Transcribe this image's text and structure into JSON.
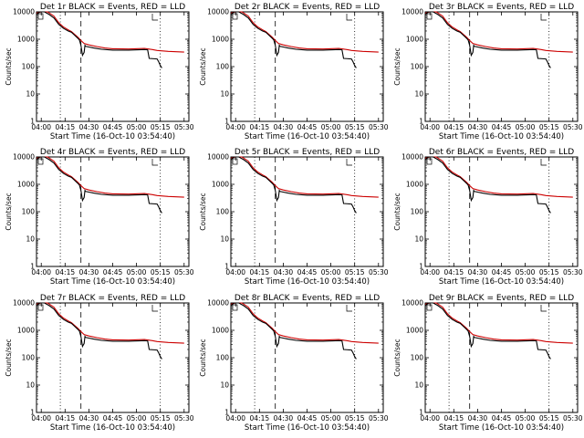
{
  "chart_data": [
    {
      "type": "line",
      "title": "Det 1r BLACK = Events, RED = LLD",
      "xlabel": "Start Time (16-Oct-10 03:54:40)",
      "ylabel": "Counts/sec",
      "yscale": "log",
      "ylim": [
        1,
        10000
      ],
      "xlim": [
        "03:57",
        "05:33"
      ],
      "x_ticks": [
        "04:00",
        "04:15",
        "04:30",
        "04:45",
        "05:00",
        "05:15",
        "05:30"
      ],
      "y_ticks": [
        "1",
        "10",
        "100",
        "1000",
        "10000"
      ],
      "vlines": [
        {
          "x": "04:12",
          "style": "dotted"
        },
        {
          "x": "04:25",
          "style": "dashed"
        },
        {
          "x": "05:15",
          "style": "dotted"
        }
      ],
      "series": []
    },
    {
      "type": "line",
      "title": "Det 2r BLACK = Events, RED = LLD",
      "xlabel": "Start Time (16-Oct-10 03:54:40)",
      "ylabel": "Counts/sec",
      "yscale": "log",
      "ylim": [
        1,
        10000
      ],
      "xlim": [
        "03:57",
        "05:33"
      ],
      "x_ticks": [
        "04:00",
        "04:15",
        "04:30",
        "04:45",
        "05:00",
        "05:15",
        "05:30"
      ],
      "y_ticks": [
        "1",
        "10",
        "100",
        "1000",
        "10000"
      ],
      "vlines": [
        {
          "x": "04:12",
          "style": "dotted"
        },
        {
          "x": "04:25",
          "style": "dashed"
        },
        {
          "x": "05:15",
          "style": "dotted"
        }
      ],
      "series": []
    },
    {
      "type": "line",
      "title": "Det 3r BLACK = Events, RED = LLD",
      "xlabel": "Start Time (16-Oct-10 03:54:40)",
      "ylabel": "Counts/sec",
      "yscale": "log",
      "ylim": [
        1,
        10000
      ],
      "xlim": [
        "03:57",
        "05:33"
      ],
      "x_ticks": [
        "04:00",
        "04:15",
        "04:30",
        "04:45",
        "05:00",
        "05:15",
        "05:30"
      ],
      "y_ticks": [
        "1",
        "10",
        "100",
        "1000",
        "10000"
      ],
      "vlines": [
        {
          "x": "04:12",
          "style": "dotted"
        },
        {
          "x": "04:25",
          "style": "dashed"
        },
        {
          "x": "05:15",
          "style": "dotted"
        }
      ],
      "series": []
    },
    {
      "type": "line",
      "title": "Det 4r BLACK = Events, RED = LLD",
      "xlabel": "Start Time (16-Oct-10 03:54:40)",
      "ylabel": "Counts/sec",
      "yscale": "log",
      "ylim": [
        1,
        10000
      ],
      "xlim": [
        "03:57",
        "05:33"
      ],
      "x_ticks": [
        "04:00",
        "04:15",
        "04:30",
        "04:45",
        "05:00",
        "05:15",
        "05:30"
      ],
      "y_ticks": [
        "1",
        "10",
        "100",
        "1000",
        "10000"
      ],
      "vlines": [
        {
          "x": "04:12",
          "style": "dotted"
        },
        {
          "x": "04:25",
          "style": "dashed"
        },
        {
          "x": "05:15",
          "style": "dotted"
        }
      ],
      "series": []
    },
    {
      "type": "line",
      "title": "Det 5r BLACK = Events, RED = LLD",
      "xlabel": "Start Time (16-Oct-10 03:54:40)",
      "ylabel": "Counts/sec",
      "yscale": "log",
      "ylim": [
        1,
        10000
      ],
      "xlim": [
        "03:57",
        "05:33"
      ],
      "x_ticks": [
        "04:00",
        "04:15",
        "04:30",
        "04:45",
        "05:00",
        "05:15",
        "05:30"
      ],
      "y_ticks": [
        "1",
        "10",
        "100",
        "1000",
        "10000"
      ],
      "vlines": [
        {
          "x": "04:12",
          "style": "dotted"
        },
        {
          "x": "04:25",
          "style": "dashed"
        },
        {
          "x": "05:15",
          "style": "dotted"
        }
      ],
      "series": []
    },
    {
      "type": "line",
      "title": "Det 6r BLACK = Events, RED = LLD",
      "xlabel": "Start Time (16-Oct-10 03:54:40)",
      "ylabel": "Counts/sec",
      "yscale": "log",
      "ylim": [
        1,
        10000
      ],
      "xlim": [
        "03:57",
        "05:33"
      ],
      "x_ticks": [
        "04:00",
        "04:15",
        "04:30",
        "04:45",
        "05:00",
        "05:15",
        "05:30"
      ],
      "y_ticks": [
        "1",
        "10",
        "100",
        "1000",
        "10000"
      ],
      "vlines": [
        {
          "x": "04:12",
          "style": "dotted"
        },
        {
          "x": "04:25",
          "style": "dashed"
        },
        {
          "x": "05:15",
          "style": "dotted"
        }
      ],
      "series": []
    },
    {
      "type": "line",
      "title": "Det 7r BLACK = Events, RED = LLD",
      "xlabel": "Start Time (16-Oct-10 03:54:40)",
      "ylabel": "Counts/sec",
      "yscale": "log",
      "ylim": [
        1,
        10000
      ],
      "xlim": [
        "03:57",
        "05:33"
      ],
      "x_ticks": [
        "04:00",
        "04:15",
        "04:30",
        "04:45",
        "05:00",
        "05:15",
        "05:30"
      ],
      "y_ticks": [
        "1",
        "10",
        "100",
        "1000",
        "10000"
      ],
      "vlines": [
        {
          "x": "04:12",
          "style": "dotted"
        },
        {
          "x": "04:25",
          "style": "dashed"
        },
        {
          "x": "05:15",
          "style": "dotted"
        }
      ],
      "series": []
    },
    {
      "type": "line",
      "title": "Det 8r BLACK = Events, RED = LLD",
      "xlabel": "Start Time (16-Oct-10 03:54:40)",
      "ylabel": "Counts/sec",
      "yscale": "log",
      "ylim": [
        1,
        10000
      ],
      "xlim": [
        "03:57",
        "05:33"
      ],
      "x_ticks": [
        "04:00",
        "04:15",
        "04:30",
        "04:45",
        "05:00",
        "05:15",
        "05:30"
      ],
      "y_ticks": [
        "1",
        "10",
        "100",
        "1000",
        "10000"
      ],
      "vlines": [
        {
          "x": "04:12",
          "style": "dotted"
        },
        {
          "x": "04:25",
          "style": "dashed"
        },
        {
          "x": "05:15",
          "style": "dotted"
        }
      ],
      "series": []
    },
    {
      "type": "line",
      "title": "Det 9r BLACK = Events, RED = LLD",
      "xlabel": "Start Time (16-Oct-10 03:54:40)",
      "ylabel": "Counts/sec",
      "yscale": "log",
      "ylim": [
        1,
        10000
      ],
      "xlim": [
        "03:57",
        "05:33"
      ],
      "x_ticks": [
        "04:00",
        "04:15",
        "04:30",
        "04:45",
        "05:00",
        "05:15",
        "05:30"
      ],
      "y_ticks": [
        "1",
        "10",
        "100",
        "1000",
        "10000"
      ],
      "vlines": [
        {
          "x": "04:12",
          "style": "dotted"
        },
        {
          "x": "04:25",
          "style": "dashed"
        },
        {
          "x": "05:15",
          "style": "dotted"
        }
      ],
      "series": []
    }
  ],
  "series_template": {
    "events": {
      "color": "#000000",
      "points": [
        [
          "03:57",
          8000
        ],
        [
          "03:59",
          10000
        ],
        [
          "04:02",
          10000
        ],
        [
          "04:05",
          8000
        ],
        [
          "04:08",
          6000
        ],
        [
          "04:11",
          3500
        ],
        [
          "04:14",
          2500
        ],
        [
          "04:17",
          2000
        ],
        [
          "04:19",
          1800
        ],
        [
          "04:21",
          1400
        ],
        [
          "04:23",
          1100
        ],
        [
          "04:24",
          950
        ],
        [
          "04:25",
          600
        ],
        [
          "04:26",
          260
        ],
        [
          "04:27",
          330
        ],
        [
          "04:27.5",
          600
        ],
        [
          "04:28",
          550
        ],
        [
          "04:30",
          520
        ],
        [
          "04:33",
          480
        ],
        [
          "04:38",
          430
        ],
        [
          "04:45",
          400
        ],
        [
          "04:55",
          400
        ],
        [
          "05:05",
          420
        ],
        [
          "05:07",
          410
        ],
        [
          "05:08",
          200
        ],
        [
          "05:13",
          190
        ],
        [
          "05:14",
          150
        ],
        [
          "05:15",
          110
        ],
        [
          "05:16",
          90
        ]
      ]
    },
    "lld": {
      "color": "#cc0000",
      "points": [
        [
          "03:57",
          9000
        ],
        [
          "04:00",
          10000
        ],
        [
          "04:04",
          10000
        ],
        [
          "04:08",
          7000
        ],
        [
          "04:11",
          4000
        ],
        [
          "04:14",
          2800
        ],
        [
          "04:17",
          2200
        ],
        [
          "04:19",
          1900
        ],
        [
          "04:21",
          1500
        ],
        [
          "04:23",
          1200
        ],
        [
          "04:25",
          900
        ],
        [
          "04:27",
          700
        ],
        [
          "04:30",
          620
        ],
        [
          "04:35",
          540
        ],
        [
          "04:40",
          480
        ],
        [
          "04:45",
          450
        ],
        [
          "04:55",
          440
        ],
        [
          "05:05",
          460
        ],
        [
          "05:10",
          420
        ],
        [
          "05:13",
          390
        ],
        [
          "05:20",
          360
        ],
        [
          "05:30",
          340
        ]
      ]
    }
  },
  "colors": {
    "events": "#000000",
    "lld": "#cc0000",
    "axis": "#000000",
    "background": "#ffffff"
  }
}
